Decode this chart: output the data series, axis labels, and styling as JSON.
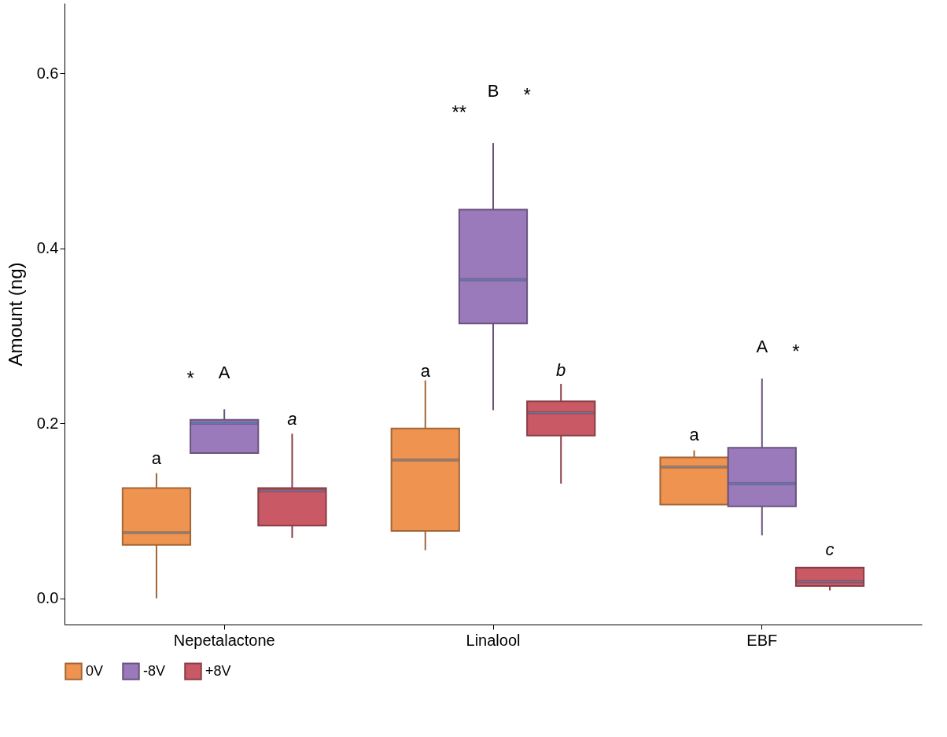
{
  "chart_data": {
    "type": "box",
    "ylabel": "Amount (ng)",
    "categories": [
      "Nepetalactone",
      "Linalool",
      "EBF"
    ],
    "ylim": [
      -0.03,
      0.68
    ],
    "yticks": [
      {
        "value": 0,
        "label": "0.0"
      },
      {
        "value": 0.2,
        "label": "0.2"
      },
      {
        "value": 0.4,
        "label": "0.4"
      },
      {
        "value": 0.6,
        "label": "0.6"
      }
    ],
    "grid": false,
    "legend": "bottom",
    "series": [
      {
        "name": "0V",
        "color": "#ef9450",
        "boxes": [
          {
            "low": 0.0,
            "q1": 0.061,
            "median": 0.075,
            "q3": 0.126,
            "high": 0.143
          },
          {
            "low": 0.055,
            "q1": 0.077,
            "median": 0.158,
            "q3": 0.194,
            "high": 0.249
          },
          {
            "low": 0.107,
            "q1": 0.107,
            "median": 0.15,
            "q3": 0.161,
            "high": 0.169
          }
        ]
      },
      {
        "name": "-8V",
        "color": "#9a7aba",
        "boxes": [
          {
            "low": 0.166,
            "q1": 0.166,
            "median": 0.2,
            "q3": 0.204,
            "high": 0.216
          },
          {
            "low": 0.215,
            "q1": 0.314,
            "median": 0.364,
            "q3": 0.444,
            "high": 0.52
          },
          {
            "low": 0.072,
            "q1": 0.105,
            "median": 0.131,
            "q3": 0.172,
            "high": 0.251
          }
        ]
      },
      {
        "name": "+8V",
        "color": "#c95a65",
        "boxes": [
          {
            "low": 0.069,
            "q1": 0.083,
            "median": 0.123,
            "q3": 0.126,
            "high": 0.188
          },
          {
            "low": 0.131,
            "q1": 0.186,
            "median": 0.212,
            "q3": 0.225,
            "high": 0.245
          },
          {
            "low": 0.009,
            "q1": 0.014,
            "median": 0.019,
            "q3": 0.035,
            "high": 0.035
          }
        ]
      }
    ],
    "annotations": [
      "a",
      "A",
      "a",
      "*",
      "a",
      "B",
      "b",
      "**",
      "*",
      "a",
      "A",
      "c",
      "*"
    ]
  }
}
